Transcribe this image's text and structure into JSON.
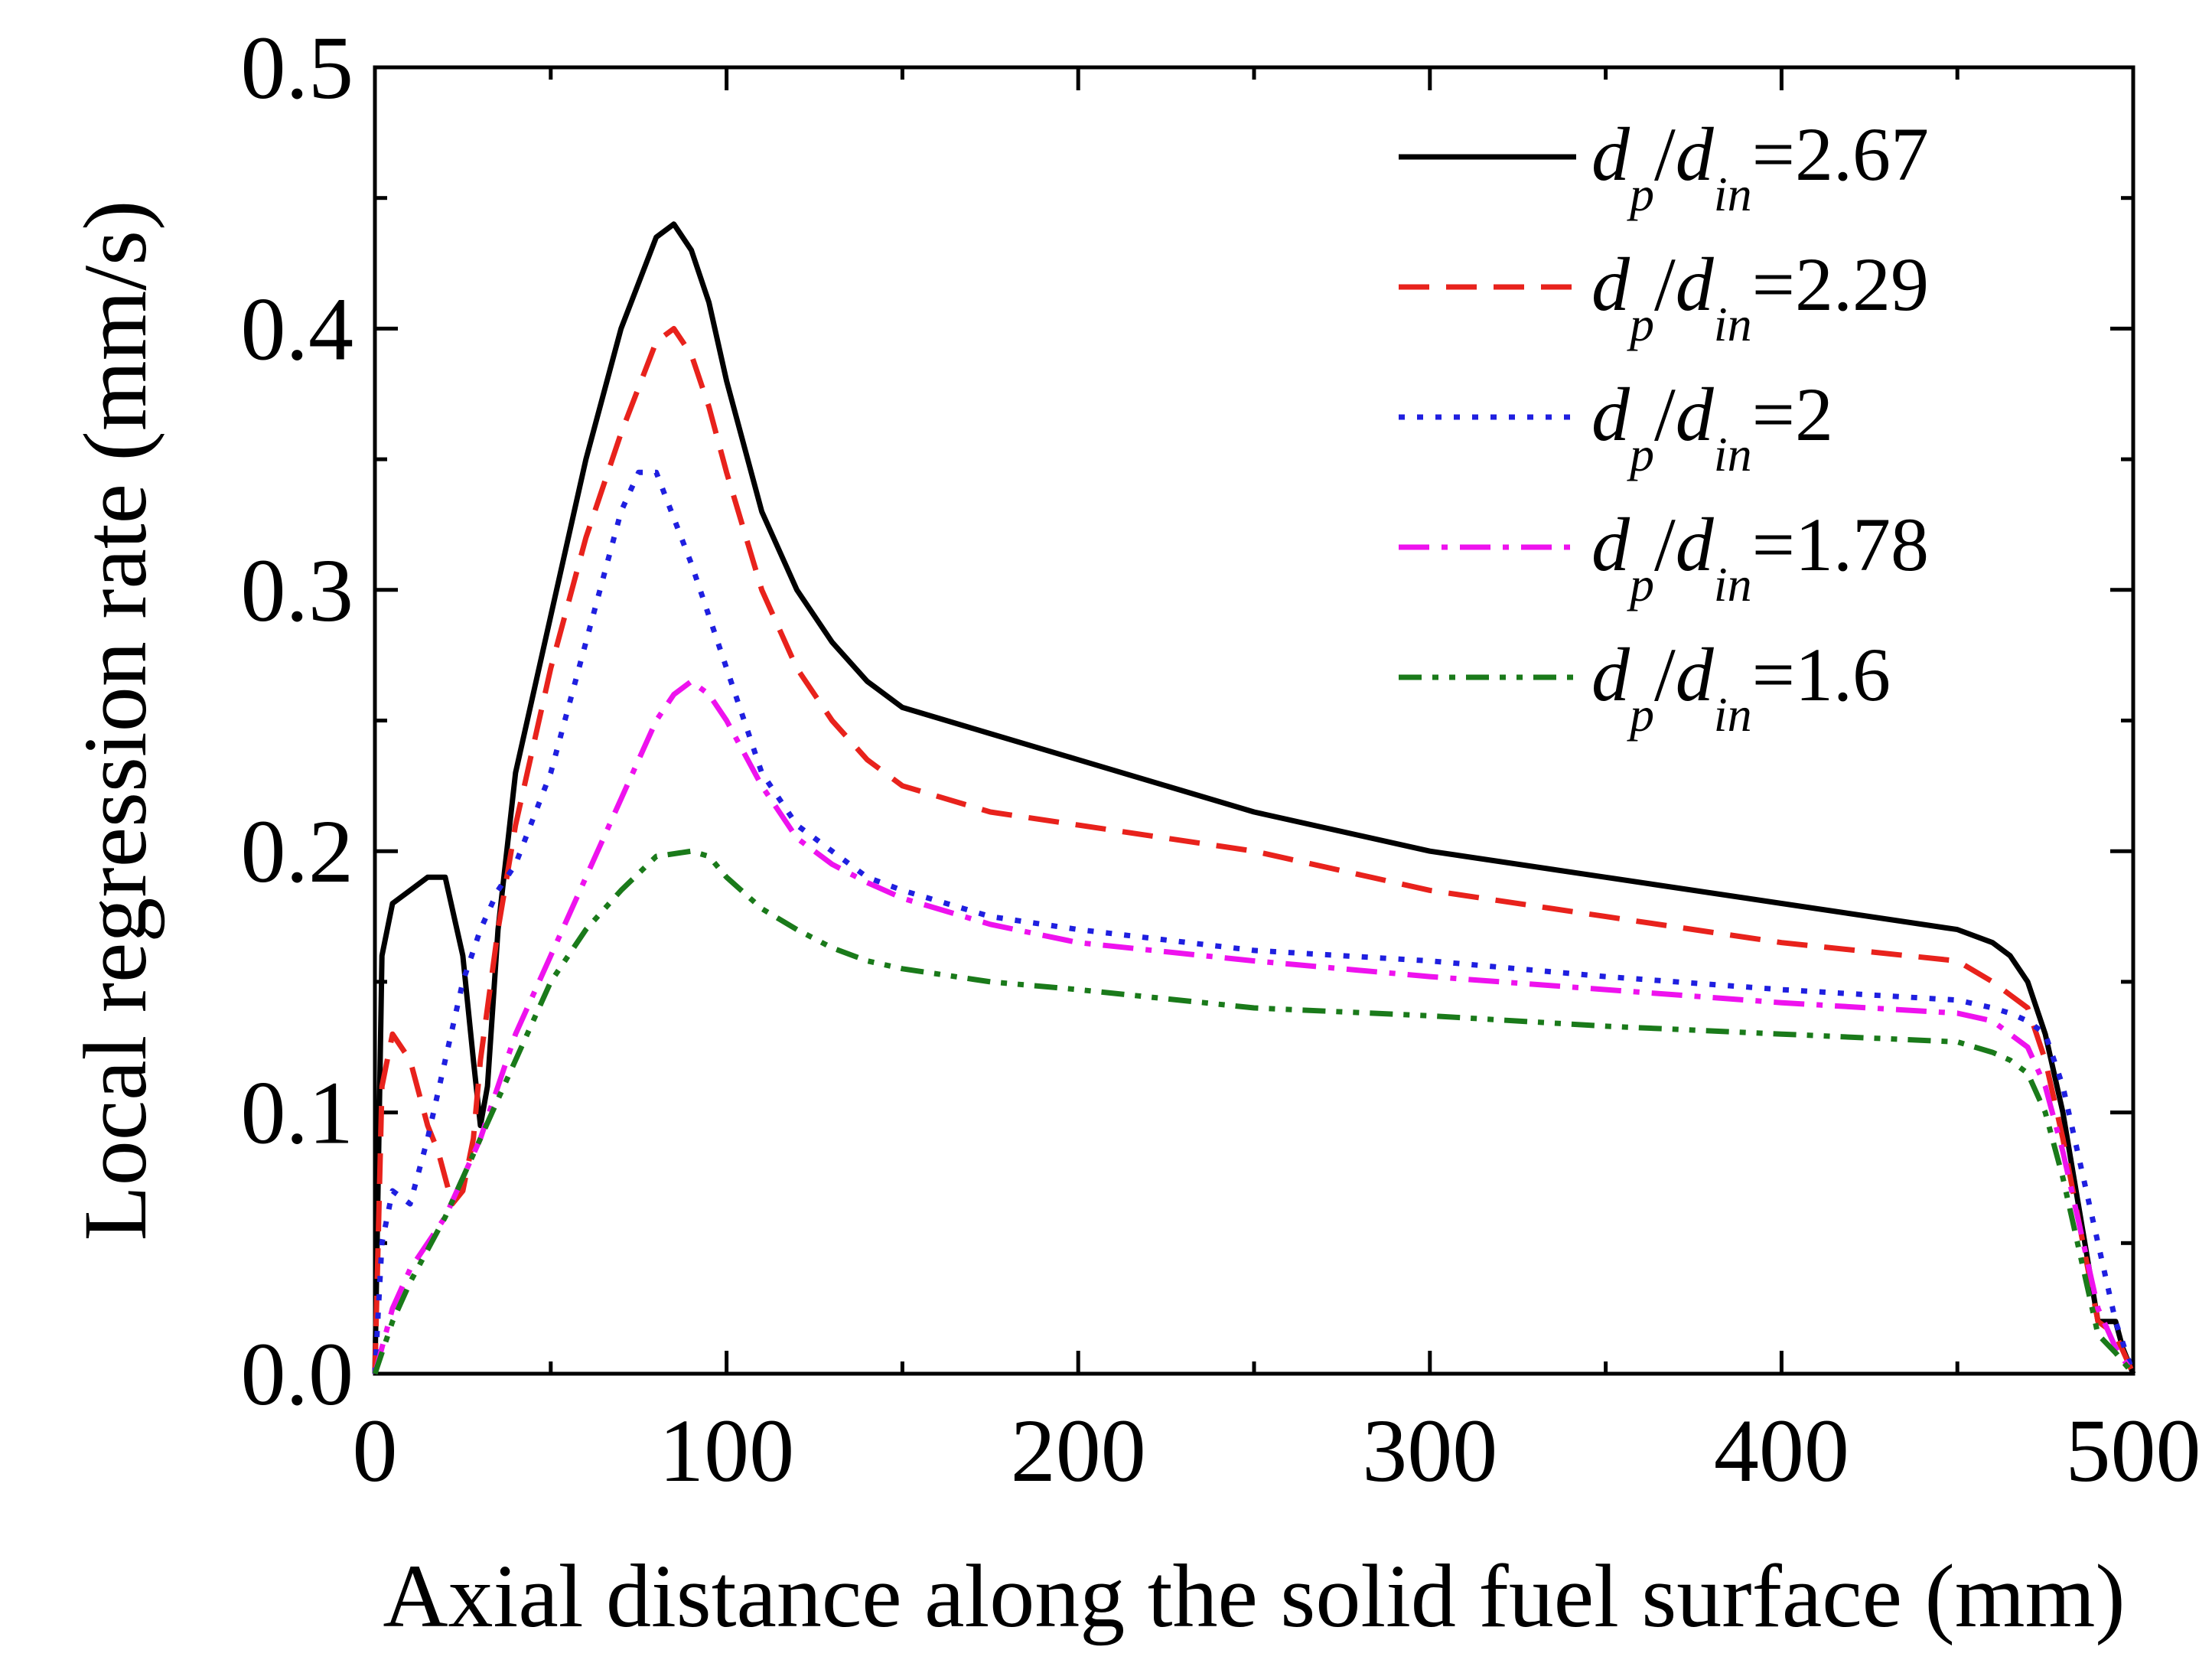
{
  "chart_data": {
    "type": "line",
    "xlabel": "Axial distance along the solid fuel surface (mm)",
    "ylabel": "Local regression rate (mm/s)",
    "xlim": [
      0,
      500
    ],
    "ylim": [
      0,
      0.5
    ],
    "xticks": [
      0,
      100,
      200,
      300,
      400,
      500
    ],
    "yticks": [
      0.0,
      0.1,
      0.2,
      0.3,
      0.4,
      0.5
    ],
    "xtick_labels": [
      "0",
      "100",
      "200",
      "300",
      "400",
      "500"
    ],
    "ytick_labels": [
      "0.0",
      "0.1",
      "0.2",
      "0.3",
      "0.4",
      "0.5"
    ],
    "legend_position": "top-right",
    "series": [
      {
        "name": "d_p/d_in=2.67",
        "legend": {
          "d1": "d",
          "s1": "p",
          "slash": "/",
          "d2": "d",
          "s2": "in",
          "value": "=2.67"
        },
        "color": "#000000",
        "style": "solid",
        "x": [
          0,
          2,
          5,
          10,
          15,
          20,
          25,
          28,
          30,
          32,
          35,
          40,
          50,
          60,
          70,
          80,
          85,
          90,
          95,
          100,
          110,
          120,
          130,
          140,
          150,
          175,
          200,
          250,
          300,
          350,
          400,
          450,
          460,
          465,
          470,
          475,
          480,
          485,
          490,
          495,
          497,
          500
        ],
        "y": [
          0.0,
          0.16,
          0.18,
          0.185,
          0.19,
          0.19,
          0.16,
          0.12,
          0.095,
          0.11,
          0.17,
          0.23,
          0.29,
          0.35,
          0.4,
          0.435,
          0.44,
          0.43,
          0.41,
          0.38,
          0.33,
          0.3,
          0.28,
          0.265,
          0.255,
          0.245,
          0.235,
          0.215,
          0.2,
          0.19,
          0.18,
          0.17,
          0.165,
          0.16,
          0.15,
          0.13,
          0.1,
          0.06,
          0.02,
          0.02,
          0.01,
          0.0
        ]
      },
      {
        "name": "d_p/d_in=2.29",
        "legend": {
          "d1": "d",
          "s1": "p",
          "slash": "/",
          "d2": "d",
          "s2": "in",
          "value": "=2.29"
        },
        "color": "#e8221c",
        "style": "dashed",
        "x": [
          0,
          2,
          5,
          10,
          15,
          18,
          20,
          22,
          25,
          28,
          30,
          35,
          40,
          50,
          60,
          70,
          80,
          85,
          90,
          95,
          100,
          110,
          120,
          130,
          140,
          150,
          175,
          200,
          250,
          300,
          350,
          400,
          450,
          460,
          465,
          470,
          475,
          480,
          485,
          490,
          495,
          500
        ],
        "y": [
          0.0,
          0.11,
          0.13,
          0.12,
          0.095,
          0.085,
          0.075,
          0.065,
          0.07,
          0.09,
          0.12,
          0.17,
          0.21,
          0.27,
          0.32,
          0.36,
          0.395,
          0.4,
          0.39,
          0.37,
          0.345,
          0.3,
          0.27,
          0.25,
          0.235,
          0.225,
          0.215,
          0.21,
          0.2,
          0.185,
          0.175,
          0.165,
          0.158,
          0.15,
          0.145,
          0.14,
          0.12,
          0.09,
          0.055,
          0.02,
          0.015,
          0.0
        ]
      },
      {
        "name": "d_p/d_in=2",
        "legend": {
          "d1": "d",
          "s1": "p",
          "slash": "/",
          "d2": "d",
          "s2": "in",
          "value": "=2"
        },
        "color": "#1f1fe0",
        "style": "dotted",
        "x": [
          0,
          2,
          5,
          10,
          15,
          20,
          25,
          30,
          35,
          40,
          50,
          60,
          70,
          75,
          80,
          90,
          100,
          110,
          120,
          130,
          140,
          150,
          175,
          200,
          250,
          300,
          350,
          400,
          450,
          460,
          465,
          470,
          475,
          480,
          485,
          490,
          495,
          500
        ],
        "y": [
          0.0,
          0.05,
          0.07,
          0.065,
          0.09,
          0.12,
          0.15,
          0.17,
          0.185,
          0.195,
          0.23,
          0.28,
          0.33,
          0.345,
          0.345,
          0.31,
          0.27,
          0.23,
          0.21,
          0.2,
          0.19,
          0.185,
          0.175,
          0.17,
          0.162,
          0.158,
          0.152,
          0.147,
          0.143,
          0.14,
          0.138,
          0.135,
          0.13,
          0.11,
          0.08,
          0.05,
          0.02,
          0.0
        ]
      },
      {
        "name": "d_p/d_in=1.78",
        "legend": {
          "d1": "d",
          "s1": "p",
          "slash": "/",
          "d2": "d",
          "s2": "in",
          "value": "=1.78"
        },
        "color": "#ee12ee",
        "style": "dashdot",
        "x": [
          0,
          5,
          10,
          20,
          30,
          40,
          50,
          60,
          70,
          80,
          85,
          90,
          95,
          100,
          110,
          120,
          130,
          140,
          150,
          175,
          200,
          250,
          300,
          350,
          400,
          450,
          460,
          465,
          470,
          475,
          480,
          485,
          490,
          495,
          500
        ],
        "y": [
          0.0,
          0.025,
          0.04,
          0.06,
          0.09,
          0.13,
          0.16,
          0.19,
          0.22,
          0.25,
          0.26,
          0.265,
          0.26,
          0.25,
          0.225,
          0.205,
          0.195,
          0.188,
          0.182,
          0.172,
          0.165,
          0.158,
          0.152,
          0.147,
          0.142,
          0.138,
          0.135,
          0.13,
          0.125,
          0.11,
          0.085,
          0.055,
          0.025,
          0.01,
          0.0
        ]
      },
      {
        "name": "d_p/d_in=1.6",
        "legend": {
          "d1": "d",
          "s1": "p",
          "slash": "/",
          "d2": "d",
          "s2": "in",
          "value": "=1.6"
        },
        "color": "#1a7a1a",
        "style": "dashdotdot",
        "x": [
          0,
          5,
          10,
          20,
          30,
          40,
          50,
          60,
          70,
          80,
          90,
          95,
          100,
          110,
          120,
          130,
          140,
          150,
          175,
          200,
          250,
          300,
          350,
          400,
          450,
          460,
          465,
          470,
          475,
          480,
          485,
          490,
          495,
          500
        ],
        "y": [
          0.0,
          0.02,
          0.035,
          0.06,
          0.09,
          0.12,
          0.15,
          0.17,
          0.185,
          0.198,
          0.2,
          0.198,
          0.19,
          0.178,
          0.17,
          0.163,
          0.158,
          0.155,
          0.15,
          0.147,
          0.14,
          0.137,
          0.133,
          0.13,
          0.127,
          0.123,
          0.12,
          0.115,
          0.1,
          0.075,
          0.045,
          0.015,
          0.008,
          0.0
        ]
      }
    ]
  }
}
